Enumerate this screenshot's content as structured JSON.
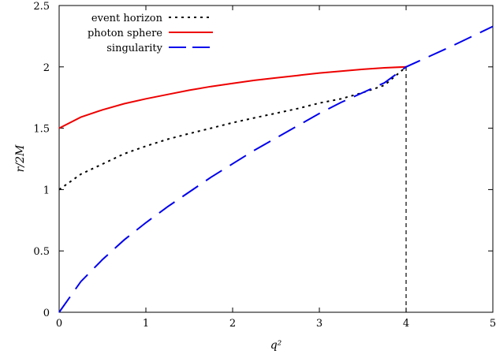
{
  "chart_data": {
    "type": "line",
    "xlabel": "q²",
    "ylabel": "r/2M",
    "xlim": [
      0,
      5
    ],
    "ylim": [
      0,
      2.5
    ],
    "x_ticks": [
      0,
      1,
      2,
      3,
      4,
      5
    ],
    "x_tick_labels": [
      "0",
      "1",
      "2",
      "3",
      "4",
      "5"
    ],
    "y_ticks": [
      0,
      0.5,
      1,
      1.5,
      2,
      2.5
    ],
    "y_tick_labels": [
      "0",
      "0.5",
      "1",
      "1.5",
      "2",
      "2.5"
    ],
    "grid": false,
    "legend_position": "top-left",
    "series": [
      {
        "name": "event horizon",
        "color": "#000000",
        "style": "dotted",
        "x": [
          0,
          0.25,
          0.5,
          0.75,
          1,
          1.25,
          1.5,
          1.75,
          2,
          2.25,
          2.5,
          2.75,
          3,
          3.25,
          3.5,
          3.75,
          4
        ],
        "y": [
          1,
          1.125,
          1.208,
          1.292,
          1.354,
          1.41,
          1.456,
          1.5,
          1.545,
          1.584,
          1.622,
          1.66,
          1.705,
          1.74,
          1.79,
          1.85,
          2
        ]
      },
      {
        "name": "photon sphere",
        "color": "#ee0000",
        "style": "solid",
        "x": [
          0,
          0.25,
          0.5,
          0.75,
          1,
          1.25,
          1.5,
          1.75,
          2,
          2.25,
          2.5,
          2.75,
          3,
          3.25,
          3.5,
          3.75,
          4
        ],
        "y": [
          1.5,
          1.59,
          1.65,
          1.7,
          1.74,
          1.775,
          1.81,
          1.84,
          1.865,
          1.89,
          1.91,
          1.93,
          1.95,
          1.965,
          1.98,
          1.992,
          2
        ]
      },
      {
        "name": "singularity",
        "color": "#0000ee",
        "style": "dashed",
        "x": [
          0,
          0.25,
          0.5,
          0.75,
          1,
          1.25,
          1.5,
          1.75,
          2,
          2.25,
          2.5,
          2.75,
          3,
          3.25,
          3.5,
          3.75,
          4,
          4.5,
          5
        ],
        "y": [
          0,
          0.25,
          0.43,
          0.59,
          0.73,
          0.86,
          0.98,
          1.1,
          1.21,
          1.32,
          1.42,
          1.52,
          1.62,
          1.71,
          1.79,
          1.87,
          2,
          2.16,
          2.33
        ]
      }
    ],
    "reference_lines": [
      {
        "x": 4,
        "y_from": 0,
        "y_to": 2,
        "color": "#000000",
        "style": "dashed"
      }
    ]
  }
}
